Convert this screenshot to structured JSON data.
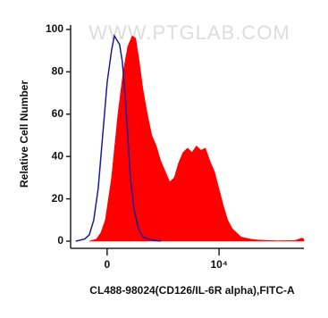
{
  "chart_data": {
    "type": "histogram",
    "watermark": "WWW.PTGLAB.COM",
    "xlabel": "CL488-98024(CD126/IL-6R alpha),FITC-A",
    "ylabel": "Relative Cell Number",
    "xscale": "biexponential",
    "xlim": [
      -340,
      407000
    ],
    "ylim": [
      0,
      100
    ],
    "xticks": [
      0,
      {
        "value": 10000,
        "label": "10⁴"
      }
    ],
    "yticks": [
      0,
      20,
      40,
      60,
      80,
      100
    ],
    "series": [
      {
        "color": "#ff0000",
        "fill": true,
        "x": [
          -129,
          -73,
          -42,
          -12,
          29,
          73,
          114,
          154,
          199,
          240,
          287,
          342,
          422,
          518,
          634,
          774,
          945,
          1150,
          1400,
          1700,
          2070,
          2520,
          3060,
          3720,
          4530,
          5520,
          6690,
          8140,
          9900,
          12000,
          14600,
          17800,
          21500,
          26300,
          38900,
          57400,
          125000,
          273000,
          375000,
          407000
        ],
        "values": [
          0,
          1,
          4,
          10,
          30,
          60,
          80,
          92,
          97,
          96,
          85,
          72,
          60,
          50,
          45,
          38,
          33,
          28,
          30,
          37,
          42,
          44,
          42,
          45,
          43,
          44,
          38,
          33,
          25,
          17,
          10,
          6,
          4,
          2,
          1,
          0.5,
          0.2,
          0.3,
          1.5,
          1
        ]
      },
      {
        "color": "#1a1aa0",
        "fill": false,
        "x": [
          -275,
          -171,
          -129,
          -93,
          -60,
          -29,
          0,
          29,
          48,
          66,
          86,
          107,
          129,
          154,
          180,
          220,
          275,
          342,
          518,
          774
        ],
        "values": [
          0,
          1,
          3,
          10,
          25,
          50,
          75,
          90,
          97,
          95,
          93,
          85,
          70,
          50,
          30,
          15,
          6,
          2,
          0.5,
          0
        ]
      }
    ]
  }
}
